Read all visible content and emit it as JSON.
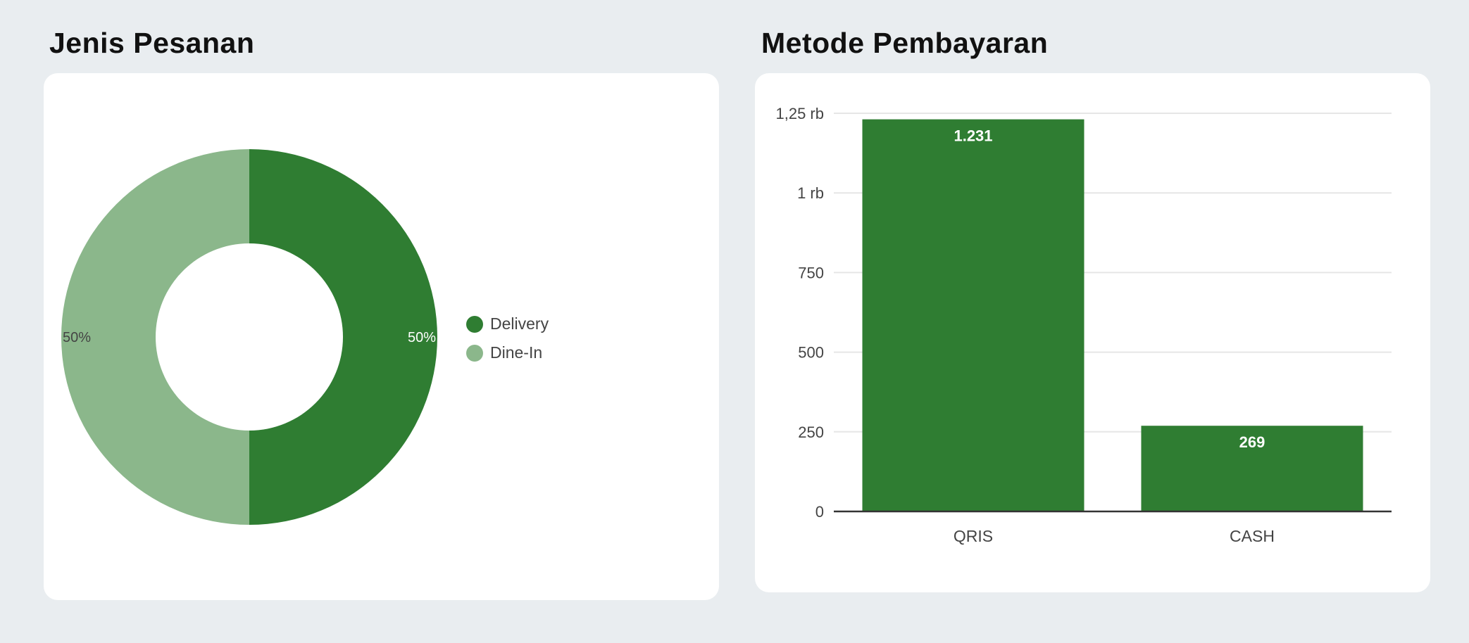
{
  "chart_data": [
    {
      "type": "pie",
      "title": "Jenis Pesanan",
      "donut": true,
      "labels": [
        "Delivery",
        "Dine-In"
      ],
      "values": [
        50,
        50
      ],
      "data_labels": [
        "50%",
        "50%"
      ],
      "colors": [
        "#2f7d32",
        "#8bb78b"
      ],
      "legend_position": "right"
    },
    {
      "type": "bar",
      "title": "Metode Pembayaran",
      "categories": [
        "QRIS",
        "CASH"
      ],
      "values": [
        1231,
        269
      ],
      "data_labels": [
        "1.231",
        "269"
      ],
      "ylim": [
        0,
        1250
      ],
      "yticks": [
        0,
        250,
        500,
        750,
        1000,
        1250
      ],
      "ytick_labels": [
        "0",
        "250",
        "500",
        "750",
        "1 rb",
        "1,25 rb"
      ],
      "grid": true,
      "color": "#2f7d32",
      "xlabel": "",
      "ylabel": ""
    }
  ]
}
